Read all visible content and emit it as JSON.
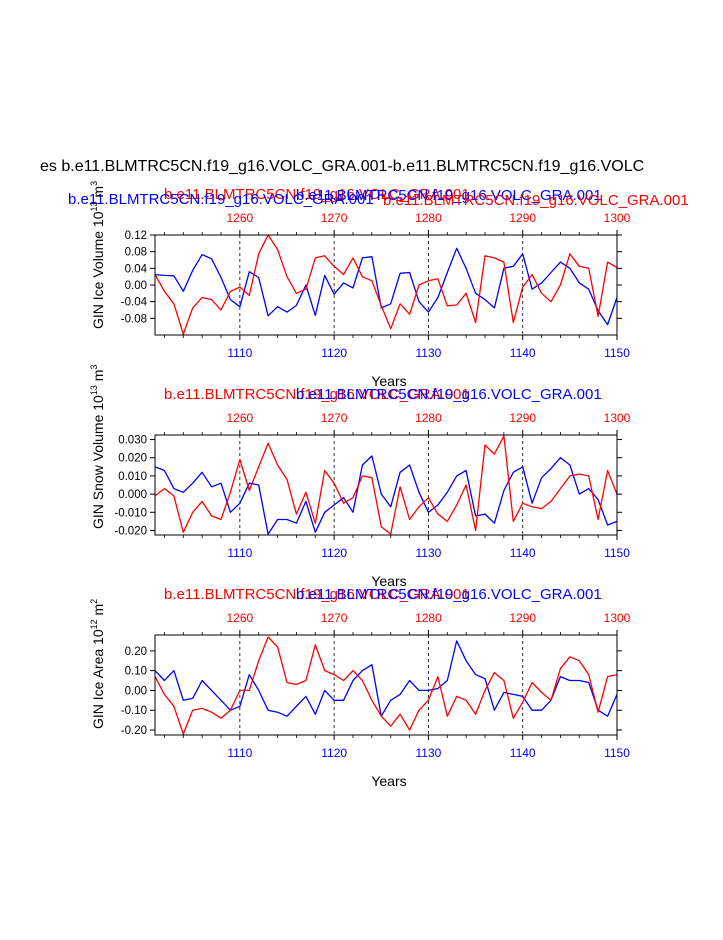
{
  "page_title": "es b.e11.BLMTRC5CN.f19_g16.VOLC_GRA.001-b.e11.BLMTRC5CN.f19_g16.VOLC",
  "colors": {
    "blue": "#0000ff",
    "red": "#ff0000",
    "black": "#000000"
  },
  "chart_data": [
    {
      "type": "line",
      "panel_id": "ice-volume",
      "header_blue": "b.e11.BLMTRC5CN.f19_g16.VOLC_GRA.001",
      "header_red": "b.e11.BLMTRC5CN.f19_g16.VOLC_GRA.001",
      "header_blue_overlay": "b.e11.BLMTRC5CN.f19_g16.VOLC_GRA.001",
      "header_red_overlay": "b.e11.BLMTRC5CN.f19_g16.VOLC_GRA.001",
      "ylabel_main": "GIN Ice Volume 10",
      "ylabel_exp": "13",
      "ylabel_unit": " m",
      "ylabel_unit_exp": "3",
      "xlabel": "Years",
      "ylim": [
        -0.12,
        0.12
      ],
      "yticks": [
        0.12,
        0.08,
        0.04,
        0.0,
        -0.04,
        -0.08
      ],
      "ytick_labels": [
        "0.12",
        "0.08",
        "0.04",
        "0.00",
        "-0.04",
        "-0.08"
      ],
      "bottom_xlim": [
        1101,
        1150
      ],
      "bottom_ticks": [
        1110,
        1120,
        1130,
        1140,
        1150
      ],
      "top_xlim": [
        1251,
        1300
      ],
      "top_ticks": [
        1260,
        1270,
        1280,
        1290,
        1300
      ],
      "series": [
        {
          "name": "blue",
          "color": "#0000ff",
          "values": [
            0.025,
            0.023,
            0.022,
            -0.015,
            0.035,
            0.073,
            0.063,
            0.018,
            -0.035,
            -0.052,
            0.032,
            0.018,
            -0.074,
            -0.052,
            -0.065,
            -0.049,
            0.0,
            -0.073,
            0.023,
            -0.022,
            0.005,
            -0.007,
            0.065,
            0.068,
            -0.055,
            -0.045,
            0.028,
            0.03,
            -0.04,
            -0.065,
            -0.03,
            0.03,
            0.088,
            0.04,
            -0.02,
            -0.035,
            -0.055,
            0.04,
            0.045,
            0.075,
            -0.01,
            0.005,
            0.03,
            0.055,
            0.04,
            0.005,
            -0.01,
            -0.062,
            -0.095,
            -0.03
          ]
        },
        {
          "name": "red",
          "color": "#ff0000",
          "values": [
            0.025,
            -0.015,
            -0.045,
            -0.118,
            -0.055,
            -0.03,
            -0.035,
            -0.06,
            -0.015,
            -0.005,
            -0.025,
            0.075,
            0.12,
            0.085,
            0.02,
            -0.02,
            -0.01,
            0.065,
            0.07,
            0.045,
            0.025,
            0.065,
            0.02,
            0.01,
            -0.05,
            -0.105,
            -0.045,
            -0.07,
            0.0,
            0.01,
            0.015,
            -0.05,
            -0.048,
            -0.02,
            -0.09,
            0.07,
            0.065,
            0.055,
            -0.09,
            -0.005,
            0.025,
            -0.02,
            -0.04,
            0.0,
            0.075,
            0.045,
            0.04,
            -0.075,
            0.055,
            0.042
          ]
        }
      ]
    },
    {
      "type": "line",
      "panel_id": "snow-volume",
      "header_blue": "b.e11.BLMTRC5CN.f19_g16.VOLC_GRA.001",
      "header_red": "b.e11.BLMTRC5CN.f19_g16.VOLC_GRA.001",
      "ylabel_main": "GIN Snow Volume 10",
      "ylabel_exp": "13",
      "ylabel_unit": " m",
      "ylabel_unit_exp": "3",
      "xlabel": "Years",
      "ylim": [
        -0.0225,
        0.0325
      ],
      "yticks": [
        0.03,
        0.02,
        0.01,
        0.0,
        -0.01,
        -0.02
      ],
      "ytick_labels": [
        "0.030",
        "0.020",
        "0.010",
        "0.000",
        "-0.010",
        "-0.020"
      ],
      "bottom_xlim": [
        1101,
        1150
      ],
      "bottom_ticks": [
        1110,
        1120,
        1130,
        1140,
        1150
      ],
      "top_xlim": [
        1251,
        1300
      ],
      "top_ticks": [
        1260,
        1270,
        1280,
        1290,
        1300
      ],
      "series": [
        {
          "name": "blue",
          "color": "#0000ff",
          "values": [
            0.015,
            0.013,
            0.003,
            0.001,
            0.006,
            0.012,
            0.004,
            0.006,
            -0.01,
            -0.005,
            0.006,
            0.005,
            -0.022,
            -0.014,
            -0.014,
            -0.016,
            -0.004,
            -0.021,
            -0.01,
            -0.006,
            -0.002,
            -0.01,
            0.016,
            0.021,
            0.0,
            -0.007,
            0.012,
            0.016,
            0.001,
            -0.01,
            -0.006,
            0.001,
            0.01,
            0.013,
            -0.012,
            -0.011,
            -0.016,
            0.002,
            0.012,
            0.015,
            -0.005,
            0.009,
            0.014,
            0.02,
            0.016,
            0.0,
            0.003,
            -0.003,
            -0.017,
            -0.015
          ]
        },
        {
          "name": "red",
          "color": "#ff0000",
          "values": [
            -0.001,
            0.003,
            -0.001,
            -0.021,
            -0.01,
            -0.004,
            -0.012,
            -0.014,
            0.001,
            0.019,
            0.002,
            0.015,
            0.028,
            0.016,
            0.008,
            -0.011,
            0.001,
            -0.016,
            0.013,
            0.006,
            -0.005,
            -0.002,
            0.01,
            0.009,
            -0.018,
            -0.022,
            0.004,
            -0.014,
            -0.007,
            -0.002,
            -0.011,
            -0.015,
            -0.006,
            0.005,
            -0.02,
            0.027,
            0.022,
            0.032,
            -0.015,
            -0.005,
            -0.007,
            -0.008,
            -0.004,
            0.003,
            0.01,
            0.011,
            0.01,
            -0.014,
            0.013,
            0.0
          ]
        }
      ]
    },
    {
      "type": "line",
      "panel_id": "ice-area",
      "header_blue": "b.e11.BLMTRC5CN.f19_g16.VOLC_GRA.001",
      "header_red": "b.e11.BLMTRC5CN.f19_g16.VOLC_GRA.001",
      "ylabel_main": "GIN Ice Area 10",
      "ylabel_exp": "12",
      "ylabel_unit": " m",
      "ylabel_unit_exp": "2",
      "xlabel": "Years",
      "ylim": [
        -0.225,
        0.28
      ],
      "yticks": [
        0.2,
        0.1,
        0.0,
        -0.1,
        -0.2
      ],
      "ytick_labels": [
        "0.20",
        "0.10",
        "0.00",
        "-0.10",
        "-0.20"
      ],
      "bottom_xlim": [
        1101,
        1150
      ],
      "bottom_ticks": [
        1110,
        1120,
        1130,
        1140,
        1150
      ],
      "top_xlim": [
        1251,
        1300
      ],
      "top_ticks": [
        1260,
        1270,
        1280,
        1290,
        1300
      ],
      "series": [
        {
          "name": "blue",
          "color": "#0000ff",
          "values": [
            0.1,
            0.05,
            0.1,
            -0.05,
            -0.04,
            0.05,
            0.0,
            -0.05,
            -0.1,
            -0.08,
            0.08,
            0.0,
            -0.1,
            -0.11,
            -0.13,
            -0.08,
            -0.03,
            -0.12,
            0.0,
            -0.05,
            -0.05,
            0.05,
            0.1,
            0.13,
            -0.13,
            -0.05,
            -0.02,
            0.05,
            0.0,
            0.0,
            0.01,
            0.05,
            0.25,
            0.15,
            0.08,
            0.06,
            -0.1,
            -0.01,
            -0.02,
            -0.03,
            -0.1,
            -0.1,
            -0.05,
            0.07,
            0.05,
            0.05,
            0.04,
            -0.1,
            -0.13,
            -0.02
          ]
        },
        {
          "name": "red",
          "color": "#ff0000",
          "values": [
            0.07,
            -0.02,
            -0.08,
            -0.22,
            -0.1,
            -0.09,
            -0.11,
            -0.14,
            -0.1,
            0.0,
            0.0,
            0.15,
            0.27,
            0.22,
            0.04,
            0.03,
            0.05,
            0.23,
            0.1,
            0.08,
            0.05,
            0.1,
            0.05,
            -0.05,
            -0.13,
            -0.18,
            -0.12,
            -0.2,
            -0.1,
            -0.05,
            0.07,
            -0.13,
            -0.03,
            -0.05,
            -0.12,
            0.0,
            0.09,
            0.05,
            -0.14,
            -0.06,
            0.04,
            -0.01,
            -0.05,
            0.11,
            0.17,
            0.15,
            0.08,
            -0.11,
            0.07,
            0.08
          ]
        }
      ]
    }
  ]
}
